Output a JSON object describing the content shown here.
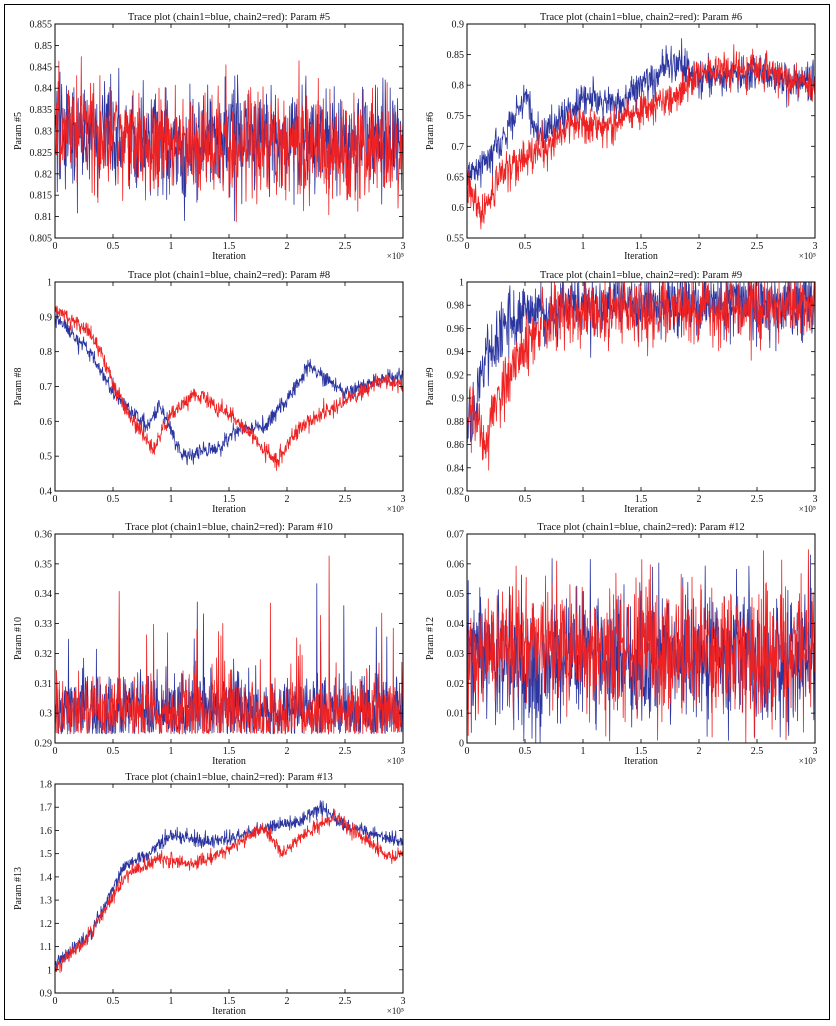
{
  "figure": {
    "colors": {
      "chain1": "#2b35a0",
      "chain2": "#ee2222",
      "axis": "#000000"
    }
  },
  "chart_data": [
    {
      "id": "p5",
      "type": "line",
      "title": "Trace plot (chain1=blue, chain2=red): Param #5",
      "xlabel": "Iteration",
      "ylabel": "Param #5",
      "x_multiplier": "×10⁵",
      "xlim": [
        0,
        3
      ],
      "ylim": [
        0.805,
        0.855
      ],
      "xticks": [
        "0",
        "0.5",
        "1",
        "1.5",
        "2",
        "2.5",
        "3"
      ],
      "yticks": [
        "0.805",
        "0.81",
        "0.815",
        "0.82",
        "0.825",
        "0.83",
        "0.835",
        "0.84",
        "0.845",
        "0.85",
        "0.855"
      ],
      "series": [
        {
          "color": "#2b35a0",
          "trend": [
            [
              0,
              0.83
            ],
            [
              0.5,
              0.829
            ],
            [
              1,
              0.827
            ],
            [
              1.5,
              0.828
            ],
            [
              2,
              0.829
            ],
            [
              2.5,
              0.828
            ],
            [
              3,
              0.827
            ]
          ],
          "noise": 0.006,
          "walk": false,
          "seed": 11
        },
        {
          "color": "#ee2222",
          "trend": [
            [
              0,
              0.832
            ],
            [
              0.5,
              0.828
            ],
            [
              1,
              0.826
            ],
            [
              1.5,
              0.826
            ],
            [
              2,
              0.826
            ],
            [
              2.5,
              0.826
            ],
            [
              3,
              0.826
            ]
          ],
          "noise": 0.006,
          "walk": false,
          "seed": 12
        }
      ]
    },
    {
      "id": "p6",
      "type": "line",
      "title": "Trace plot (chain1=blue, chain2=red): Param #6",
      "xlabel": "Iteration",
      "ylabel": "Param #6",
      "x_multiplier": "×10⁵",
      "xlim": [
        0,
        3
      ],
      "ylim": [
        0.55,
        0.9
      ],
      "xticks": [
        "0",
        "0.5",
        "1",
        "1.5",
        "2",
        "2.5",
        "3"
      ],
      "yticks": [
        "0.55",
        "0.6",
        "0.65",
        "0.7",
        "0.75",
        "0.8",
        "0.85",
        "0.9"
      ],
      "series": [
        {
          "color": "#2b35a0",
          "trend": [
            [
              0,
              0.65
            ],
            [
              0.2,
              0.68
            ],
            [
              0.5,
              0.78
            ],
            [
              0.6,
              0.72
            ],
            [
              0.8,
              0.74
            ],
            [
              1.0,
              0.78
            ],
            [
              1.3,
              0.77
            ],
            [
              1.5,
              0.8
            ],
            [
              1.8,
              0.84
            ],
            [
              2.0,
              0.81
            ],
            [
              2.5,
              0.82
            ],
            [
              2.8,
              0.8
            ],
            [
              3,
              0.81
            ]
          ],
          "noise": 0.015,
          "walk": false,
          "seed": 21
        },
        {
          "color": "#ee2222",
          "trend": [
            [
              0,
              0.64
            ],
            [
              0.15,
              0.59
            ],
            [
              0.3,
              0.66
            ],
            [
              0.5,
              0.68
            ],
            [
              0.7,
              0.7
            ],
            [
              0.9,
              0.74
            ],
            [
              1.2,
              0.73
            ],
            [
              1.5,
              0.76
            ],
            [
              1.8,
              0.78
            ],
            [
              2.0,
              0.82
            ],
            [
              2.5,
              0.83
            ],
            [
              3,
              0.8
            ]
          ],
          "noise": 0.015,
          "walk": false,
          "seed": 22
        }
      ]
    },
    {
      "id": "p8",
      "type": "line",
      "title": "Trace plot (chain1=blue, chain2=red): Param #8",
      "xlabel": "Iteration",
      "ylabel": "Param #8",
      "x_multiplier": "×10⁵",
      "xlim": [
        0,
        3
      ],
      "ylim": [
        0.4,
        1
      ],
      "xticks": [
        "0",
        "0.5",
        "1",
        "1.5",
        "2",
        "2.5",
        "3"
      ],
      "yticks": [
        "0.4",
        "0.5",
        "0.6",
        "0.7",
        "0.8",
        "0.9",
        "1"
      ],
      "series": [
        {
          "color": "#2b35a0",
          "trend": [
            [
              0,
              0.9
            ],
            [
              0.3,
              0.8
            ],
            [
              0.5,
              0.68
            ],
            [
              0.8,
              0.58
            ],
            [
              0.9,
              0.65
            ],
            [
              1.1,
              0.5
            ],
            [
              1.4,
              0.52
            ],
            [
              1.6,
              0.58
            ],
            [
              1.8,
              0.58
            ],
            [
              2.0,
              0.66
            ],
            [
              2.2,
              0.76
            ],
            [
              2.5,
              0.68
            ],
            [
              2.8,
              0.72
            ],
            [
              3,
              0.73
            ]
          ],
          "noise": 0.012,
          "walk": false,
          "seed": 31
        },
        {
          "color": "#ee2222",
          "trend": [
            [
              0,
              0.92
            ],
            [
              0.3,
              0.86
            ],
            [
              0.6,
              0.64
            ],
            [
              0.85,
              0.52
            ],
            [
              1.0,
              0.62
            ],
            [
              1.2,
              0.68
            ],
            [
              1.5,
              0.62
            ],
            [
              1.7,
              0.56
            ],
            [
              1.9,
              0.48
            ],
            [
              2.1,
              0.58
            ],
            [
              2.4,
              0.64
            ],
            [
              2.8,
              0.72
            ],
            [
              3,
              0.7
            ]
          ],
          "noise": 0.012,
          "walk": false,
          "seed": 32
        }
      ]
    },
    {
      "id": "p9",
      "type": "line",
      "title": "Trace plot (chain1=blue, chain2=red): Param #9",
      "xlabel": "Iteration",
      "ylabel": "Param #9",
      "x_multiplier": "×10⁵",
      "xlim": [
        0,
        3
      ],
      "ylim": [
        0.82,
        1
      ],
      "xticks": [
        "0",
        "0.5",
        "1",
        "1.5",
        "2",
        "2.5",
        "3"
      ],
      "yticks": [
        "0.82",
        "0.84",
        "0.86",
        "0.88",
        "0.9",
        "0.92",
        "0.94",
        "0.96",
        "0.98",
        "1"
      ],
      "series": [
        {
          "color": "#2b35a0",
          "trend": [
            [
              0,
              0.87
            ],
            [
              0.15,
              0.93
            ],
            [
              0.3,
              0.96
            ],
            [
              0.5,
              0.975
            ],
            [
              1,
              0.98
            ],
            [
              3,
              0.98
            ]
          ],
          "noise": 0.014,
          "walk": false,
          "clip": 1,
          "seed": 41
        },
        {
          "color": "#ee2222",
          "trend": [
            [
              0,
              0.9
            ],
            [
              0.15,
              0.86
            ],
            [
              0.25,
              0.9
            ],
            [
              0.4,
              0.93
            ],
            [
              0.6,
              0.96
            ],
            [
              0.8,
              0.975
            ],
            [
              3,
              0.98
            ]
          ],
          "noise": 0.014,
          "walk": false,
          "clip": 1,
          "seed": 42
        }
      ]
    },
    {
      "id": "p10",
      "type": "line",
      "title": "Trace plot (chain1=blue, chain2=red): Param #10",
      "xlabel": "Iteration",
      "ylabel": "Param #10",
      "x_multiplier": "×10⁵",
      "xlim": [
        0,
        3
      ],
      "ylim": [
        0.29,
        0.36
      ],
      "xticks": [
        "0",
        "0.5",
        "1",
        "1.5",
        "2",
        "2.5",
        "3"
      ],
      "yticks": [
        "0.29",
        "0.3",
        "0.31",
        "0.32",
        "0.33",
        "0.34",
        "0.35",
        "0.36"
      ],
      "series": [
        {
          "color": "#2b35a0",
          "trend": [
            [
              0,
              0.301
            ],
            [
              3,
              0.301
            ]
          ],
          "noise": 0.006,
          "walk": false,
          "floor": 0.293,
          "spikes": 0.04,
          "seed": 51
        },
        {
          "color": "#ee2222",
          "trend": [
            [
              0,
              0.3
            ],
            [
              3,
              0.3
            ]
          ],
          "noise": 0.006,
          "walk": false,
          "floor": 0.293,
          "spikes": 0.05,
          "seed": 52
        }
      ]
    },
    {
      "id": "p12",
      "type": "line",
      "title": "Trace plot (chain1=blue, chain2=red): Param #12",
      "xlabel": "Iteration",
      "ylabel": "Param #12",
      "x_multiplier": "×10⁵",
      "xlim": [
        0,
        3
      ],
      "ylim": [
        0,
        0.07
      ],
      "xticks": [
        "0",
        "0.5",
        "1",
        "1.5",
        "2",
        "2.5",
        "3"
      ],
      "yticks": [
        "0",
        "0.01",
        "0.02",
        "0.03",
        "0.04",
        "0.05",
        "0.06",
        "0.07"
      ],
      "series": [
        {
          "color": "#2b35a0",
          "trend": [
            [
              0,
              0.03
            ],
            [
              0.5,
              0.025
            ],
            [
              1,
              0.03
            ],
            [
              1.5,
              0.028
            ],
            [
              2,
              0.03
            ],
            [
              2.5,
              0.028
            ],
            [
              3,
              0.03
            ]
          ],
          "noise": 0.011,
          "walk": false,
          "floor": 0,
          "seed": 61
        },
        {
          "color": "#ee2222",
          "trend": [
            [
              0,
              0.03
            ],
            [
              0.5,
              0.032
            ],
            [
              1,
              0.03
            ],
            [
              1.5,
              0.032
            ],
            [
              2,
              0.03
            ],
            [
              2.5,
              0.028
            ],
            [
              3,
              0.032
            ]
          ],
          "noise": 0.011,
          "walk": false,
          "floor": 0,
          "seed": 62
        }
      ]
    },
    {
      "id": "p13",
      "type": "line",
      "title": "Trace plot (chain1=blue, chain2=red): Param #13",
      "xlabel": "Iteration",
      "ylabel": "Param #13",
      "x_multiplier": "×10⁵",
      "xlim": [
        0,
        3
      ],
      "ylim": [
        0.9,
        1.8
      ],
      "xticks": [
        "0",
        "0.5",
        "1",
        "1.5",
        "2",
        "2.5",
        "3"
      ],
      "yticks": [
        "0.9",
        "1",
        "1.1",
        "1.2",
        "1.3",
        "1.4",
        "1.5",
        "1.6",
        "1.7",
        "1.8"
      ],
      "series": [
        {
          "color": "#2b35a0",
          "trend": [
            [
              0,
              1.02
            ],
            [
              0.3,
              1.15
            ],
            [
              0.6,
              1.45
            ],
            [
              0.8,
              1.5
            ],
            [
              1.0,
              1.58
            ],
            [
              1.3,
              1.55
            ],
            [
              1.6,
              1.58
            ],
            [
              1.9,
              1.62
            ],
            [
              2.1,
              1.64
            ],
            [
              2.3,
              1.7
            ],
            [
              2.5,
              1.62
            ],
            [
              2.8,
              1.58
            ],
            [
              3,
              1.55
            ]
          ],
          "noise": 0.015,
          "walk": false,
          "seed": 71
        },
        {
          "color": "#ee2222",
          "trend": [
            [
              0,
              1.0
            ],
            [
              0.3,
              1.15
            ],
            [
              0.6,
              1.4
            ],
            [
              0.9,
              1.48
            ],
            [
              1.2,
              1.45
            ],
            [
              1.5,
              1.52
            ],
            [
              1.8,
              1.62
            ],
            [
              1.95,
              1.5
            ],
            [
              2.2,
              1.6
            ],
            [
              2.4,
              1.66
            ],
            [
              2.7,
              1.55
            ],
            [
              2.9,
              1.48
            ],
            [
              3,
              1.5
            ]
          ],
          "noise": 0.015,
          "walk": false,
          "seed": 72
        }
      ]
    }
  ]
}
